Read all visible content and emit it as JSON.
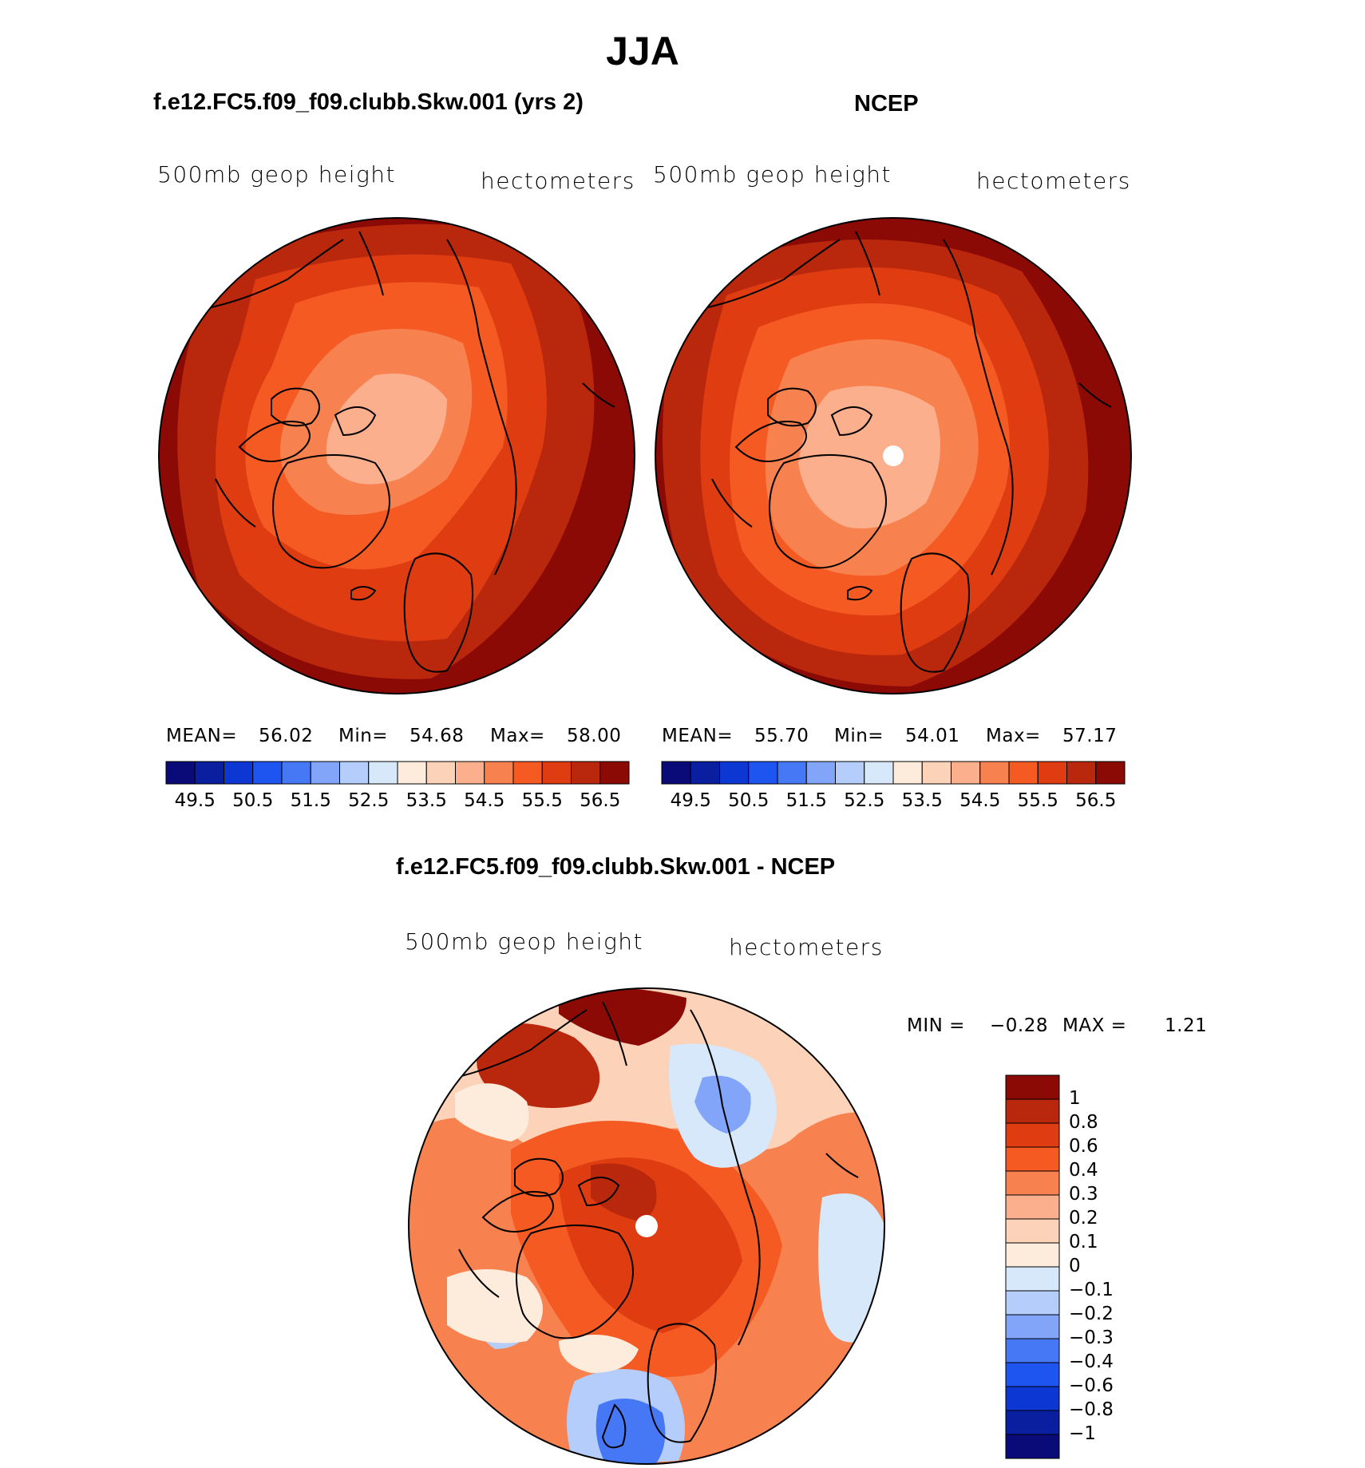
{
  "title": "JJA",
  "panels": [
    {
      "subtitle": "f.e12.FC5.f09_f09.clubb.Skw.001 (yrs 2)",
      "left_label": "500mb geop height",
      "right_label": "hectometers",
      "stats": {
        "mean_label": "MEAN=",
        "mean": "56.02",
        "min_label": "Min=",
        "min": "54.68",
        "max_label": "Max=",
        "max": "58.00"
      }
    },
    {
      "subtitle": "NCEP",
      "left_label": "500mb geop height",
      "right_label": "hectometers",
      "stats": {
        "mean_label": "MEAN=",
        "mean": "55.70",
        "min_label": "Min=",
        "min": "54.01",
        "max_label": "Max=",
        "max": "57.17"
      }
    },
    {
      "subtitle": "f.e12.FC5.f09_f09.clubb.Skw.001 - NCEP",
      "left_label": "500mb geop height",
      "right_label": "hectometers",
      "stats": {
        "min_label": "MIN =",
        "min": "−0.28",
        "max_label": "MAX =",
        "max": "1.21"
      }
    }
  ],
  "chart_data": [
    {
      "type": "heatmap",
      "title": "f.e12.FC5.f09_f09.clubb.Skw.001 (yrs 2)",
      "variable": "500mb geop height",
      "units": "hectometers",
      "projection": "polar stereographic (north pole)",
      "levels": [
        49.5,
        50.0,
        50.5,
        51.0,
        51.5,
        52.0,
        52.5,
        53.0,
        53.5,
        54.0,
        54.5,
        55.0,
        55.5,
        56.0,
        56.5
      ],
      "colorbar_ticks": [
        "49.5",
        "50.5",
        "51.5",
        "52.5",
        "53.5",
        "54.5",
        "55.5",
        "56.5"
      ],
      "mean": 56.02,
      "min": 54.68,
      "max": 58.0
    },
    {
      "type": "heatmap",
      "title": "NCEP",
      "variable": "500mb geop height",
      "units": "hectometers",
      "projection": "polar stereographic (north pole)",
      "levels": [
        49.5,
        50.0,
        50.5,
        51.0,
        51.5,
        52.0,
        52.5,
        53.0,
        53.5,
        54.0,
        54.5,
        55.0,
        55.5,
        56.0,
        56.5
      ],
      "colorbar_ticks": [
        "49.5",
        "50.5",
        "51.5",
        "52.5",
        "53.5",
        "54.5",
        "55.5",
        "56.5"
      ],
      "mean": 55.7,
      "min": 54.01,
      "max": 57.17
    },
    {
      "type": "heatmap",
      "title": "f.e12.FC5.f09_f09.clubb.Skw.001 - NCEP",
      "variable": "500mb geop height",
      "units": "hectometers",
      "projection": "polar stereographic (north pole)",
      "levels": [
        -1,
        -0.8,
        -0.6,
        -0.4,
        -0.3,
        -0.2,
        -0.1,
        0,
        0.1,
        0.2,
        0.3,
        0.4,
        0.6,
        0.8,
        1
      ],
      "colorbar_ticks": [
        "1",
        "0.8",
        "0.6",
        "0.4",
        "0.3",
        "0.2",
        "0.1",
        "0",
        "−0.1",
        "−0.2",
        "−0.3",
        "−0.4",
        "−0.6",
        "−0.8",
        "−1"
      ],
      "min": -0.28,
      "max": 1.21
    }
  ],
  "colors": {
    "palette": [
      "#0a0a78",
      "#0a1ea0",
      "#0d37d2",
      "#1e55f0",
      "#4678f5",
      "#82a5fa",
      "#b4cdfa",
      "#d7e8fa",
      "#fdebdc",
      "#fcd2b9",
      "#fcaf8c",
      "#f8824f",
      "#f55a23",
      "#df3c12",
      "#b9280d",
      "#8c0a05"
    ]
  }
}
